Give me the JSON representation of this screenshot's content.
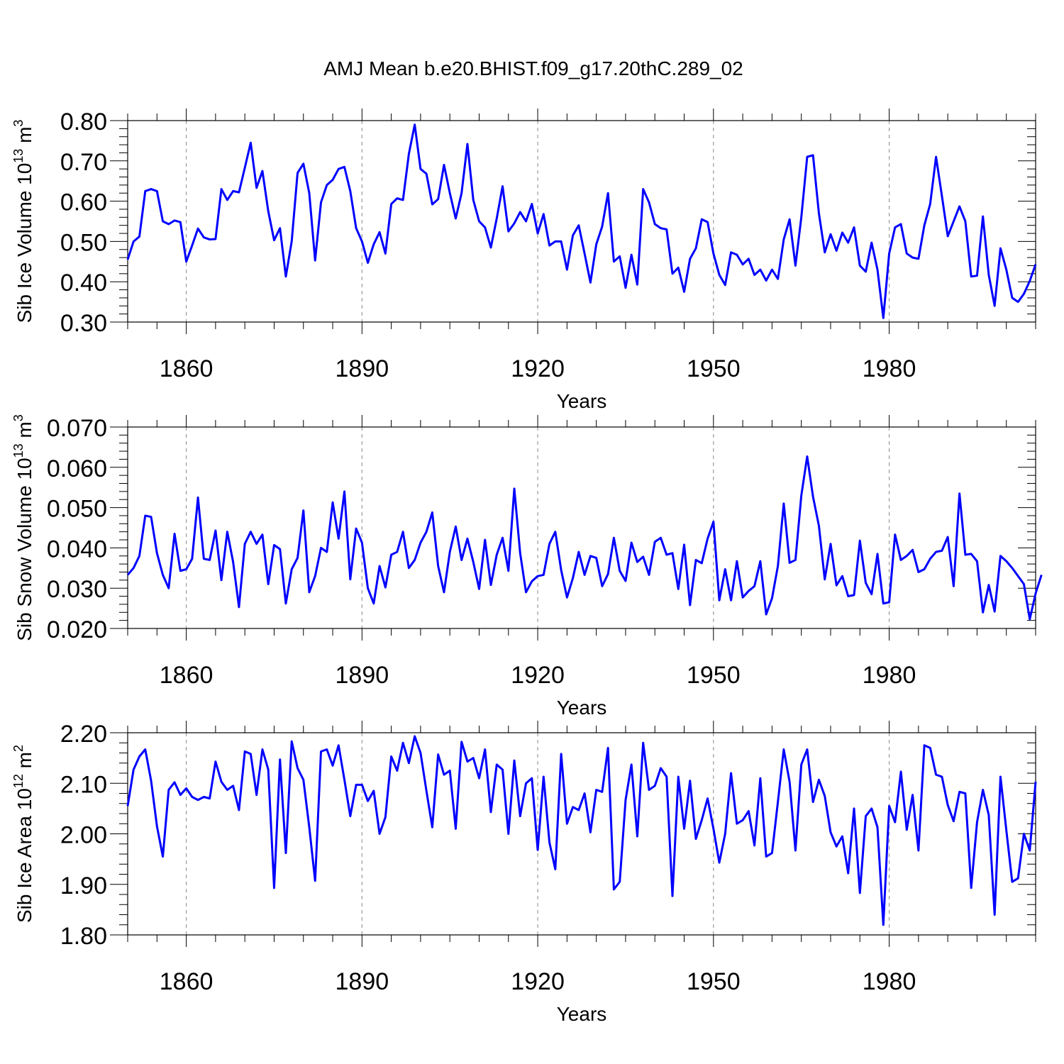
{
  "title": "AMJ Mean b.e20.BHIST.f09_g17.20thC.289_02",
  "colors": {
    "line": "#0000ff",
    "axis": "#000000",
    "grid": "#9a9a9a",
    "background": "#ffffff"
  },
  "chart_data": [
    {
      "type": "line",
      "title": "AMJ Mean b.e20.BHIST.f09_g17.20thC.289_02",
      "ylabel": {
        "base": "Sib Ice Volume 10",
        "exp": "13",
        "unit": " m",
        "unit_exp": "3"
      },
      "xlabel": "Years",
      "xlim": [
        1850,
        2005
      ],
      "ylim": [
        0.3,
        0.8
      ],
      "yticks": [
        0.3,
        0.4,
        0.5,
        0.6,
        0.7,
        0.8
      ],
      "ytick_labels": [
        "0.30",
        "0.40",
        "0.50",
        "0.60",
        "0.70",
        "0.80"
      ],
      "xticks": [
        1860,
        1890,
        1920,
        1950,
        1980
      ],
      "xtick_labels": [
        "1860",
        "1890",
        "1920",
        "1950",
        "1980"
      ],
      "grid": "vertical dashed at major x ticks",
      "x_start": 1850,
      "values": [
        0.455,
        0.5,
        0.512,
        0.625,
        0.63,
        0.625,
        0.55,
        0.543,
        0.552,
        0.548,
        0.45,
        0.49,
        0.532,
        0.51,
        0.505,
        0.506,
        0.63,
        0.603,
        0.625,
        0.622,
        0.683,
        0.745,
        0.633,
        0.675,
        0.575,
        0.503,
        0.533,
        0.413,
        0.5,
        0.67,
        0.693,
        0.62,
        0.453,
        0.597,
        0.64,
        0.653,
        0.68,
        0.685,
        0.625,
        0.533,
        0.5,
        0.447,
        0.493,
        0.523,
        0.47,
        0.593,
        0.607,
        0.603,
        0.717,
        0.79,
        0.68,
        0.668,
        0.592,
        0.605,
        0.69,
        0.62,
        0.557,
        0.62,
        0.742,
        0.603,
        0.55,
        0.535,
        0.485,
        0.557,
        0.637,
        0.525,
        0.545,
        0.573,
        0.55,
        0.593,
        0.52,
        0.568,
        0.49,
        0.5,
        0.5,
        0.43,
        0.515,
        0.54,
        0.47,
        0.398,
        0.493,
        0.537,
        0.62,
        0.45,
        0.463,
        0.385,
        0.467,
        0.393,
        0.63,
        0.597,
        0.543,
        0.533,
        0.53,
        0.42,
        0.435,
        0.375,
        0.457,
        0.483,
        0.555,
        0.548,
        0.47,
        0.417,
        0.392,
        0.473,
        0.467,
        0.443,
        0.457,
        0.417,
        0.43,
        0.403,
        0.43,
        0.407,
        0.505,
        0.555,
        0.44,
        0.56,
        0.71,
        0.714,
        0.57,
        0.473,
        0.518,
        0.477,
        0.522,
        0.497,
        0.535,
        0.44,
        0.425,
        0.497,
        0.43,
        0.31,
        0.47,
        0.535,
        0.543,
        0.47,
        0.46,
        0.457,
        0.54,
        0.593,
        0.71,
        0.613,
        0.513,
        0.55,
        0.587,
        0.55,
        0.413,
        0.415,
        0.562,
        0.417,
        0.34,
        0.483,
        0.43,
        0.36,
        0.35,
        0.37,
        0.402,
        0.443
      ]
    },
    {
      "type": "line",
      "ylabel": {
        "base": "Sib Snow Volume 10",
        "exp": "13",
        "unit": " m",
        "unit_exp": "3"
      },
      "xlabel": "Years",
      "xlim": [
        1850,
        2005
      ],
      "ylim": [
        0.02,
        0.07
      ],
      "yticks": [
        0.02,
        0.03,
        0.04,
        0.05,
        0.06,
        0.07
      ],
      "ytick_labels": [
        "0.020",
        "0.030",
        "0.040",
        "0.050",
        "0.060",
        "0.070"
      ],
      "xticks": [
        1860,
        1890,
        1920,
        1950,
        1980
      ],
      "xtick_labels": [
        "1860",
        "1890",
        "1920",
        "1950",
        "1980"
      ],
      "grid": "vertical dashed at major x ticks",
      "x_start": 1850,
      "values": [
        0.0333,
        0.035,
        0.038,
        0.048,
        0.0477,
        0.0387,
        0.0333,
        0.03,
        0.0435,
        0.0343,
        0.0347,
        0.0373,
        0.0525,
        0.0373,
        0.037,
        0.0443,
        0.032,
        0.044,
        0.0365,
        0.0253,
        0.041,
        0.044,
        0.041,
        0.0433,
        0.031,
        0.0407,
        0.0397,
        0.0262,
        0.0347,
        0.0375,
        0.0493,
        0.029,
        0.033,
        0.04,
        0.039,
        0.0513,
        0.0423,
        0.054,
        0.0322,
        0.0448,
        0.0413,
        0.03,
        0.0262,
        0.0355,
        0.0302,
        0.0383,
        0.039,
        0.044,
        0.035,
        0.037,
        0.0413,
        0.044,
        0.0488,
        0.0355,
        0.029,
        0.039,
        0.0453,
        0.037,
        0.0423,
        0.0365,
        0.0298,
        0.042,
        0.0308,
        0.0383,
        0.0425,
        0.0343,
        0.0547,
        0.0387,
        0.029,
        0.0317,
        0.033,
        0.0333,
        0.041,
        0.044,
        0.0345,
        0.0277,
        0.0325,
        0.039,
        0.0333,
        0.038,
        0.0375,
        0.0305,
        0.0335,
        0.0425,
        0.0343,
        0.0318,
        0.0413,
        0.0365,
        0.0378,
        0.0333,
        0.0415,
        0.0425,
        0.0383,
        0.0387,
        0.0298,
        0.0408,
        0.0258,
        0.037,
        0.0362,
        0.0423,
        0.0465,
        0.027,
        0.0347,
        0.027,
        0.0367,
        0.0277,
        0.0293,
        0.0305,
        0.0367,
        0.0235,
        0.0275,
        0.0355,
        0.051,
        0.0363,
        0.037,
        0.053,
        0.0627,
        0.0527,
        0.0455,
        0.0322,
        0.041,
        0.0307,
        0.033,
        0.028,
        0.0283,
        0.0418,
        0.0313,
        0.0285,
        0.0385,
        0.0262,
        0.0265,
        0.0433,
        0.037,
        0.038,
        0.0395,
        0.034,
        0.0347,
        0.0373,
        0.039,
        0.0393,
        0.0427,
        0.0305,
        0.0535,
        0.0383,
        0.0385,
        0.0367,
        0.024,
        0.0308,
        0.0242,
        0.038,
        0.0367,
        0.035,
        0.033,
        0.031,
        0.0223,
        0.0287,
        0.0333
      ]
    },
    {
      "type": "line",
      "ylabel": {
        "base": "Sib Ice Area 10",
        "exp": "12",
        "unit": " m",
        "unit_exp": "2"
      },
      "xlabel": "Years",
      "xlim": [
        1850,
        2005
      ],
      "ylim": [
        1.8,
        2.2
      ],
      "yticks": [
        1.8,
        1.9,
        2.0,
        2.1,
        2.2
      ],
      "ytick_labels": [
        "1.80",
        "1.90",
        "2.00",
        "2.10",
        "2.20"
      ],
      "xticks": [
        1860,
        1890,
        1920,
        1950,
        1980
      ],
      "xtick_labels": [
        "1860",
        "1890",
        "1920",
        "1950",
        "1980"
      ],
      "grid": "vertical dashed at major x ticks",
      "x_start": 1850,
      "values": [
        2.055,
        2.127,
        2.153,
        2.167,
        2.105,
        2.015,
        1.955,
        2.087,
        2.102,
        2.077,
        2.09,
        2.073,
        2.067,
        2.073,
        2.07,
        2.143,
        2.103,
        2.087,
        2.095,
        2.047,
        2.163,
        2.158,
        2.077,
        2.167,
        2.127,
        1.893,
        2.147,
        1.962,
        2.183,
        2.13,
        2.107,
        2.013,
        1.907,
        2.163,
        2.167,
        2.135,
        2.175,
        2.107,
        2.035,
        2.097,
        2.097,
        2.065,
        2.085,
        2.0,
        2.033,
        2.153,
        2.125,
        2.18,
        2.14,
        2.193,
        2.16,
        2.085,
        2.013,
        2.157,
        2.117,
        2.125,
        2.01,
        2.182,
        2.143,
        2.15,
        2.11,
        2.167,
        2.043,
        2.137,
        2.127,
        2.0,
        2.145,
        2.035,
        2.1,
        2.11,
        1.968,
        2.113,
        1.983,
        1.93,
        2.158,
        2.02,
        2.053,
        2.047,
        2.08,
        2.003,
        2.087,
        2.083,
        2.17,
        1.89,
        1.905,
        2.067,
        2.137,
        1.995,
        2.18,
        2.087,
        2.095,
        2.13,
        2.113,
        1.877,
        2.113,
        2.01,
        2.105,
        1.99,
        2.027,
        2.07,
        2.01,
        1.943,
        2.0,
        2.12,
        2.02,
        2.027,
        2.045,
        1.977,
        2.11,
        1.955,
        1.962,
        2.063,
        2.167,
        2.103,
        1.967,
        2.137,
        2.167,
        2.063,
        2.107,
        2.075,
        2.003,
        1.975,
        1.995,
        1.922,
        2.05,
        1.883,
        2.035,
        2.05,
        2.013,
        1.82,
        2.055,
        2.023,
        2.123,
        2.008,
        2.077,
        1.967,
        2.175,
        2.17,
        2.117,
        2.113,
        2.057,
        2.025,
        2.083,
        2.08,
        1.893,
        2.023,
        2.087,
        2.037,
        1.84,
        2.113,
        2.007,
        1.905,
        1.912,
        2.0,
        1.967,
        2.103
      ]
    }
  ]
}
